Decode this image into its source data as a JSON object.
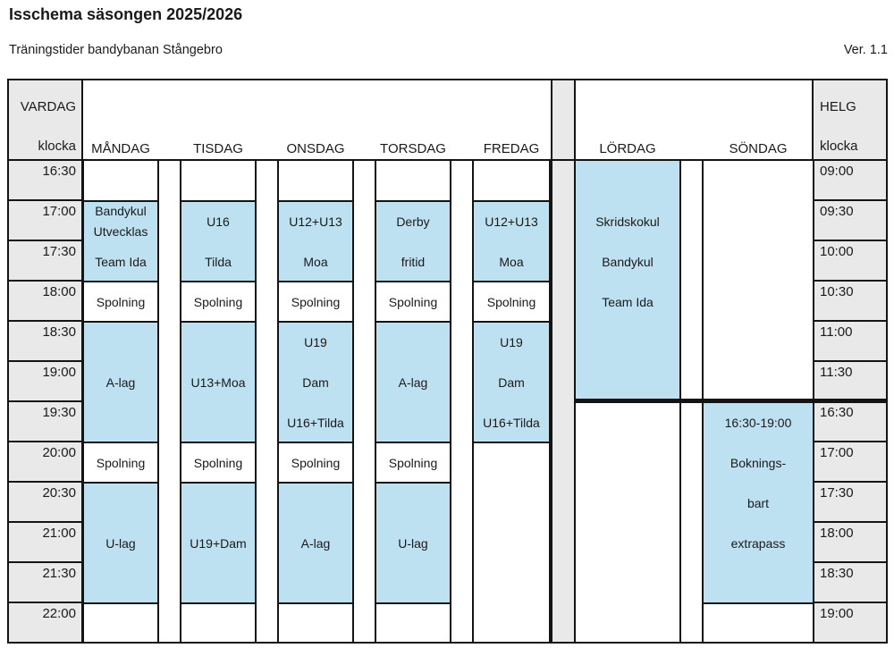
{
  "page": {
    "title": "Isschema säsongen 2025/2026",
    "subtitle": "Träningstider bandybanan Stångebro",
    "version": "Ver. 1.1"
  },
  "table": {
    "weekday_header": "VARDAG",
    "weekend_header": "HELG",
    "clock_label": "klocka",
    "weekday_times": [
      "16:30",
      "17:00",
      "17:30",
      "18:00",
      "18:30",
      "19:00",
      "19:30",
      "20:00",
      "20:30",
      "21:00",
      "21:30",
      "22:00"
    ],
    "weekend_times": [
      "09:00",
      "09:30",
      "10:00",
      "10:30",
      "11:00",
      "11:30",
      "16:30",
      "17:00",
      "17:30",
      "18:00",
      "18:30",
      "19:00"
    ],
    "days": [
      {
        "label": "MÅNDAG",
        "blocks": [
          {
            "rows": [
              1,
              3
            ],
            "fill": "blue",
            "lines": [
              {
                "t": "Bandykul",
                "r": 0.75
              },
              {
                "t": "Utvecklas",
                "r": 1.25
              },
              {
                "t": "Team Ida",
                "r": 2
              }
            ]
          },
          {
            "rows": [
              3,
              4
            ],
            "fill": "white",
            "lines": [
              {
                "t": "Spolning",
                "r": 3
              }
            ]
          },
          {
            "rows": [
              4,
              7
            ],
            "fill": "blue",
            "lines": [
              {
                "t": "A-lag",
                "r": 5
              }
            ]
          },
          {
            "rows": [
              7,
              8
            ],
            "fill": "white",
            "lines": [
              {
                "t": "Spolning",
                "r": 7
              }
            ]
          },
          {
            "rows": [
              8,
              11
            ],
            "fill": "blue",
            "lines": [
              {
                "t": "U-lag",
                "r": 9
              }
            ]
          }
        ]
      },
      {
        "label": "TISDAG",
        "blocks": [
          {
            "rows": [
              1,
              3
            ],
            "fill": "blue",
            "lines": [
              {
                "t": "U16",
                "r": 1
              },
              {
                "t": "Tilda",
                "r": 2
              }
            ]
          },
          {
            "rows": [
              3,
              4
            ],
            "fill": "white",
            "lines": [
              {
                "t": "Spolning",
                "r": 3
              }
            ]
          },
          {
            "rows": [
              4,
              7
            ],
            "fill": "blue",
            "lines": [
              {
                "t": "U13+Moa",
                "r": 5
              }
            ]
          },
          {
            "rows": [
              7,
              8
            ],
            "fill": "white",
            "lines": [
              {
                "t": "Spolning",
                "r": 7
              }
            ]
          },
          {
            "rows": [
              8,
              11
            ],
            "fill": "blue",
            "lines": [
              {
                "t": "U19+Dam",
                "r": 9
              }
            ]
          }
        ]
      },
      {
        "label": "ONSDAG",
        "blocks": [
          {
            "rows": [
              1,
              3
            ],
            "fill": "blue",
            "lines": [
              {
                "t": "U12+U13",
                "r": 1
              },
              {
                "t": "Moa",
                "r": 2
              }
            ]
          },
          {
            "rows": [
              3,
              4
            ],
            "fill": "white",
            "lines": [
              {
                "t": "Spolning",
                "r": 3
              }
            ]
          },
          {
            "rows": [
              4,
              7
            ],
            "fill": "blue",
            "lines": [
              {
                "t": "U19",
                "r": 4
              },
              {
                "t": "Dam",
                "r": 5
              },
              {
                "t": "U16+Tilda",
                "r": 6
              }
            ]
          },
          {
            "rows": [
              7,
              8
            ],
            "fill": "white",
            "lines": [
              {
                "t": "Spolning",
                "r": 7
              }
            ]
          },
          {
            "rows": [
              8,
              11
            ],
            "fill": "blue",
            "lines": [
              {
                "t": "A-lag",
                "r": 9
              }
            ]
          }
        ]
      },
      {
        "label": "TORSDAG",
        "blocks": [
          {
            "rows": [
              1,
              3
            ],
            "fill": "blue",
            "lines": [
              {
                "t": "Derby",
                "r": 1
              },
              {
                "t": "fritid",
                "r": 2
              }
            ]
          },
          {
            "rows": [
              3,
              4
            ],
            "fill": "white",
            "lines": [
              {
                "t": "Spolning",
                "r": 3
              }
            ]
          },
          {
            "rows": [
              4,
              7
            ],
            "fill": "blue",
            "lines": [
              {
                "t": "A-lag",
                "r": 5
              }
            ]
          },
          {
            "rows": [
              7,
              8
            ],
            "fill": "white",
            "lines": [
              {
                "t": "Spolning",
                "r": 7
              }
            ]
          },
          {
            "rows": [
              8,
              11
            ],
            "fill": "blue",
            "lines": [
              {
                "t": "U-lag",
                "r": 9
              }
            ]
          }
        ]
      },
      {
        "label": "FREDAG",
        "blocks": [
          {
            "rows": [
              1,
              3
            ],
            "fill": "blue",
            "lines": [
              {
                "t": "U12+U13",
                "r": 1
              },
              {
                "t": "Moa",
                "r": 2
              }
            ]
          },
          {
            "rows": [
              3,
              4
            ],
            "fill": "white",
            "lines": [
              {
                "t": "Spolning",
                "r": 3
              }
            ]
          },
          {
            "rows": [
              4,
              7
            ],
            "fill": "blue",
            "lines": [
              {
                "t": "U19",
                "r": 4
              },
              {
                "t": "Dam",
                "r": 5
              },
              {
                "t": "U16+Tilda",
                "r": 6
              }
            ]
          }
        ]
      },
      {
        "label": "LÖRDAG",
        "blocks": [
          {
            "rows": [
              0,
              6
            ],
            "fill": "blue",
            "lines": [
              {
                "t": "Skridskokul",
                "r": 1
              },
              {
                "t": "Bandykul",
                "r": 2
              },
              {
                "t": "Team Ida",
                "r": 3
              }
            ]
          }
        ]
      },
      {
        "label": "SÖNDAG",
        "blocks": [
          {
            "rows": [
              6,
              11
            ],
            "fill": "blue",
            "lines": [
              {
                "t": "16:30-19:00",
                "r": 6
              },
              {
                "t": "Boknings-",
                "r": 7
              },
              {
                "t": "bart",
                "r": 8
              },
              {
                "t": "extrapass",
                "r": 9
              }
            ]
          }
        ]
      }
    ]
  },
  "colors": {
    "block_blue": "#BEE1F1",
    "cell_gray": "#E9E9E9",
    "grid_line": "#141414",
    "text": "#1A1A1A"
  }
}
